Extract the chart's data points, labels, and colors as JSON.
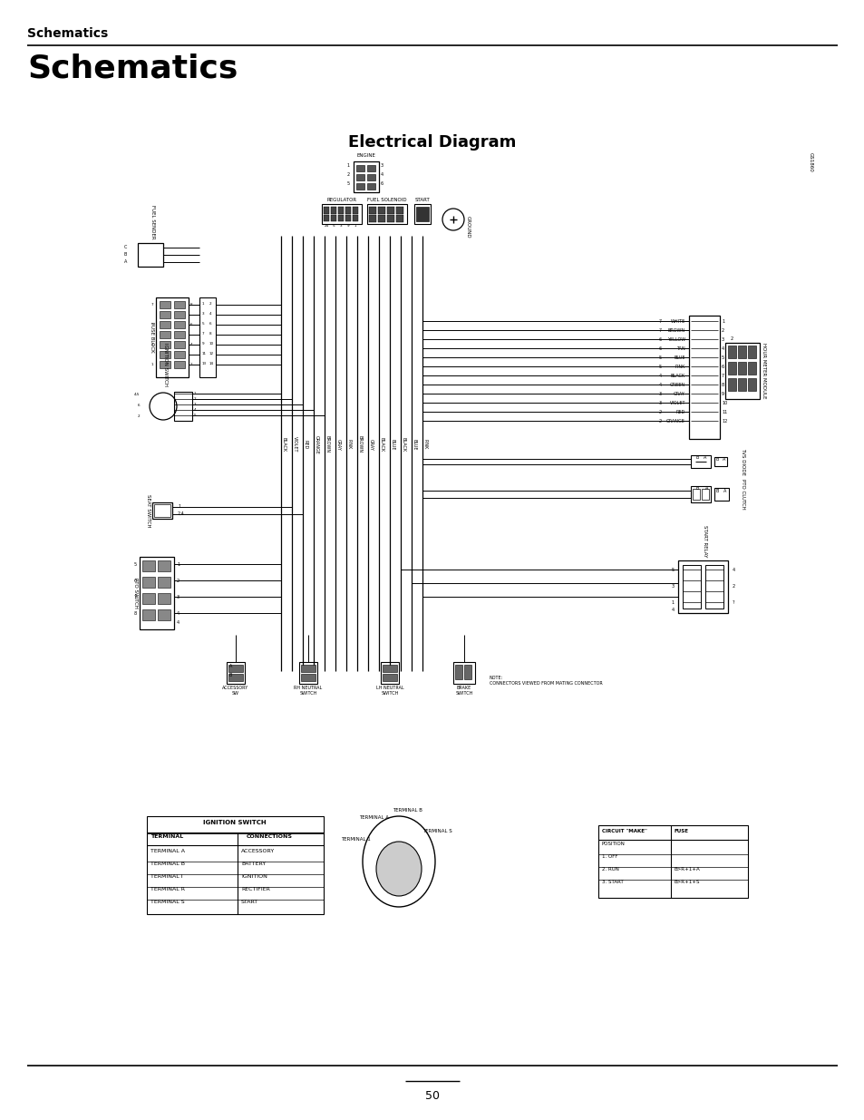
{
  "title_small": "Schematics",
  "title_large": "Schematics",
  "diagram_title": "Electrical Diagram",
  "page_number": "50",
  "bg_color": "#ffffff",
  "text_color": "#000000",
  "title_small_fontsize": 10,
  "title_large_fontsize": 26,
  "diagram_title_fontsize": 13,
  "page_num_fontsize": 9,
  "fig_width": 9.54,
  "fig_height": 12.35,
  "dpi": 100
}
